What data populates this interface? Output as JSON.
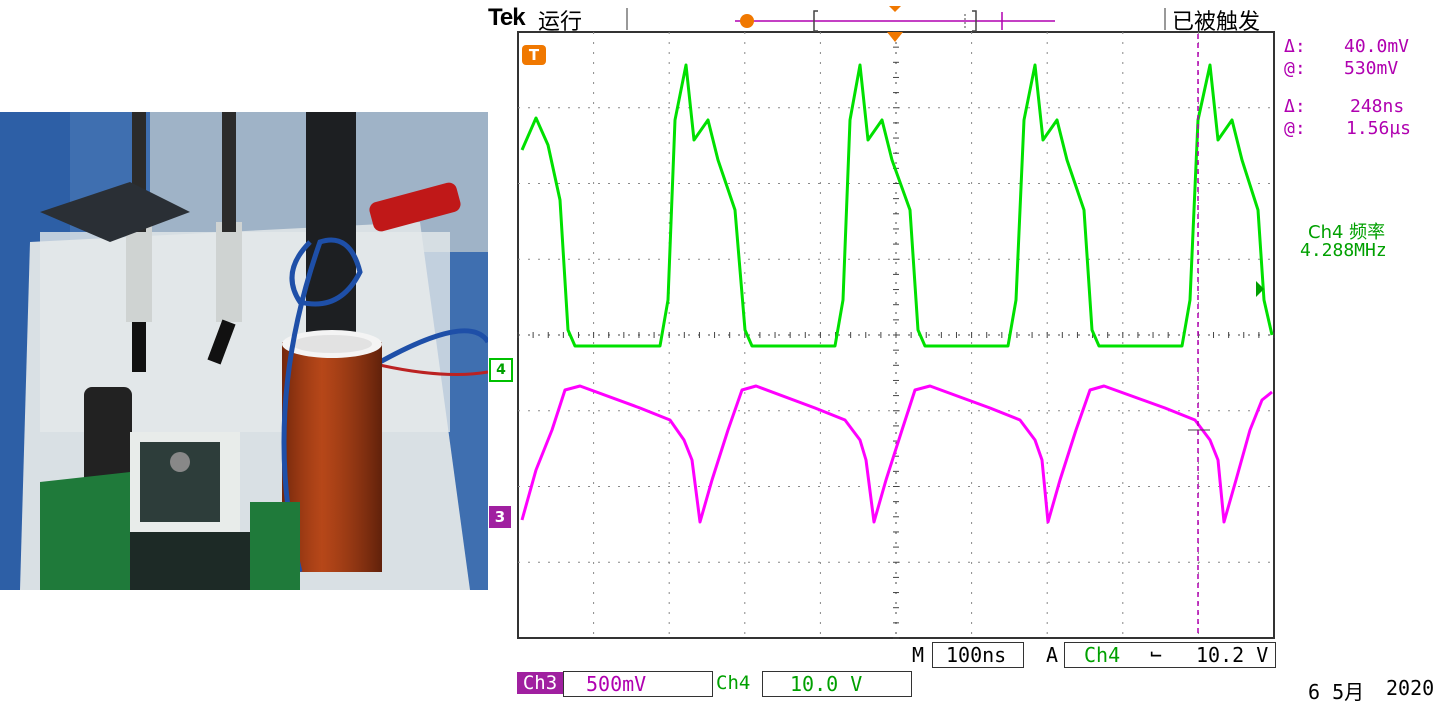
{
  "colors": {
    "ch3": "#ff00ff",
    "ch4": "#00e000",
    "cursor": "#b000b0",
    "marker": "#f07800",
    "grid": "#555555"
  },
  "header": {
    "brand": "Tek",
    "run_state": "运行",
    "trigger_status": "已被触发"
  },
  "cursor_readout": {
    "v_delta_label": "Δ:",
    "v_delta": "40.0mV",
    "v_at_label": "@:",
    "v_at": "530mV",
    "t_delta_label": "Δ:",
    "t_delta": "248ns",
    "t_at_label": "@:",
    "t_at": "1.56µs"
  },
  "measurement": {
    "label": "Ch4 频率",
    "value": "4.288MHz"
  },
  "channel_markers": {
    "ch4": "4",
    "ch3": "3",
    "trigger": "T"
  },
  "timebase": {
    "m_label": "M",
    "value": "100ns",
    "trigger_mode": "A",
    "trigger_source": "Ch4",
    "slope_icon": "falling-edge-icon",
    "slope_symbol": "⌐",
    "trigger_level": "10.2 V"
  },
  "channels": {
    "ch3_label": "Ch3",
    "ch3_scale": "500mV",
    "ch4_label": "Ch4",
    "ch4_scale": "10.0 V"
  },
  "date": {
    "day_month": "6 5月",
    "year": "2020"
  }
}
